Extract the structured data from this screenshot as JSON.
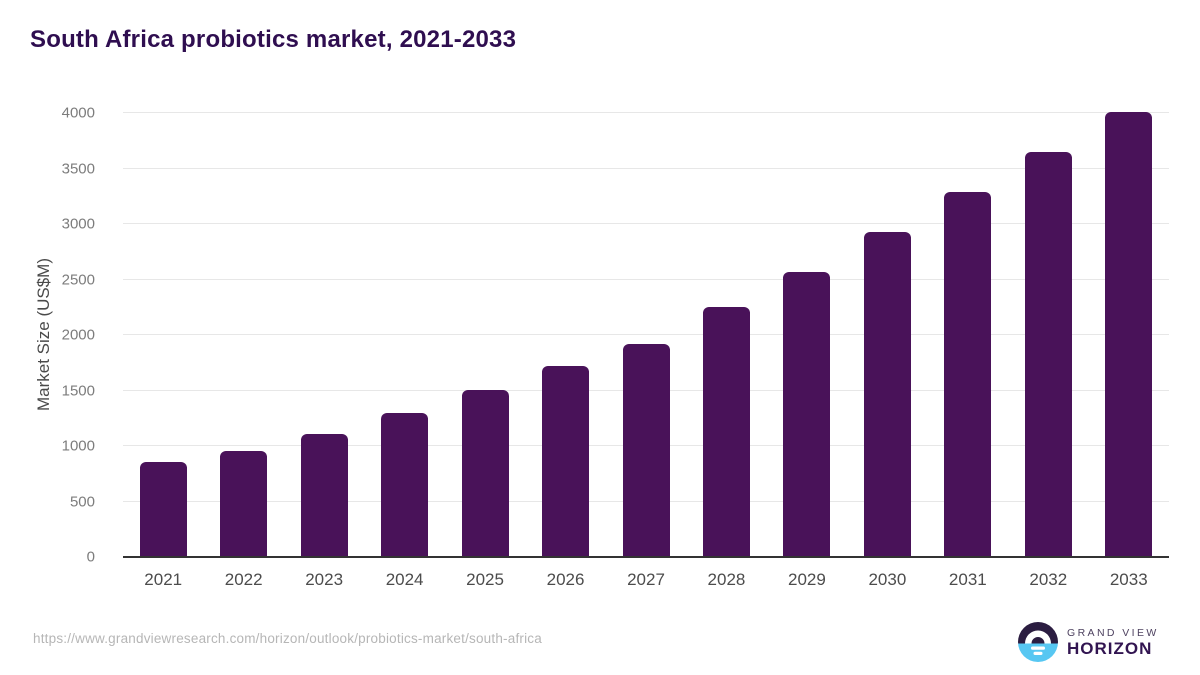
{
  "title": "South Africa probiotics market, 2021-2033",
  "footer": {
    "source_url": "https://www.grandviewresearch.com/horizon/outlook/probiotics-market/south-africa"
  },
  "logo": {
    "line1": "GRAND VIEW",
    "line2": "HORIZON",
    "icon": "horizon-sunrise-icon"
  },
  "colors": {
    "bar": "#491259",
    "title": "#2f0e50",
    "axis_line": "#333333",
    "gridline": "#e7e7e7",
    "y_tick": "#7c7c7c",
    "x_tick": "#4c4c4c",
    "url_text": "#b6b6b6",
    "logo_dark": "#2b1d41",
    "logo_blue": "#57c7f2"
  },
  "chart_data": {
    "type": "bar",
    "title": "South Africa probiotics market, 2021-2033",
    "categories": [
      "2021",
      "2022",
      "2023",
      "2024",
      "2025",
      "2026",
      "2027",
      "2028",
      "2029",
      "2030",
      "2031",
      "2032",
      "2033"
    ],
    "values": [
      855,
      955,
      1110,
      1300,
      1505,
      1720,
      1920,
      2255,
      2570,
      2930,
      3290,
      3650,
      4010
    ],
    "xlabel": "",
    "ylabel": "Market Size (US$M)",
    "ylim": [
      0,
      4000
    ],
    "yticks": [
      0,
      500,
      1000,
      1500,
      2000,
      2500,
      3000,
      3500,
      4000
    ],
    "grid": "horizontal",
    "legend": "none"
  }
}
